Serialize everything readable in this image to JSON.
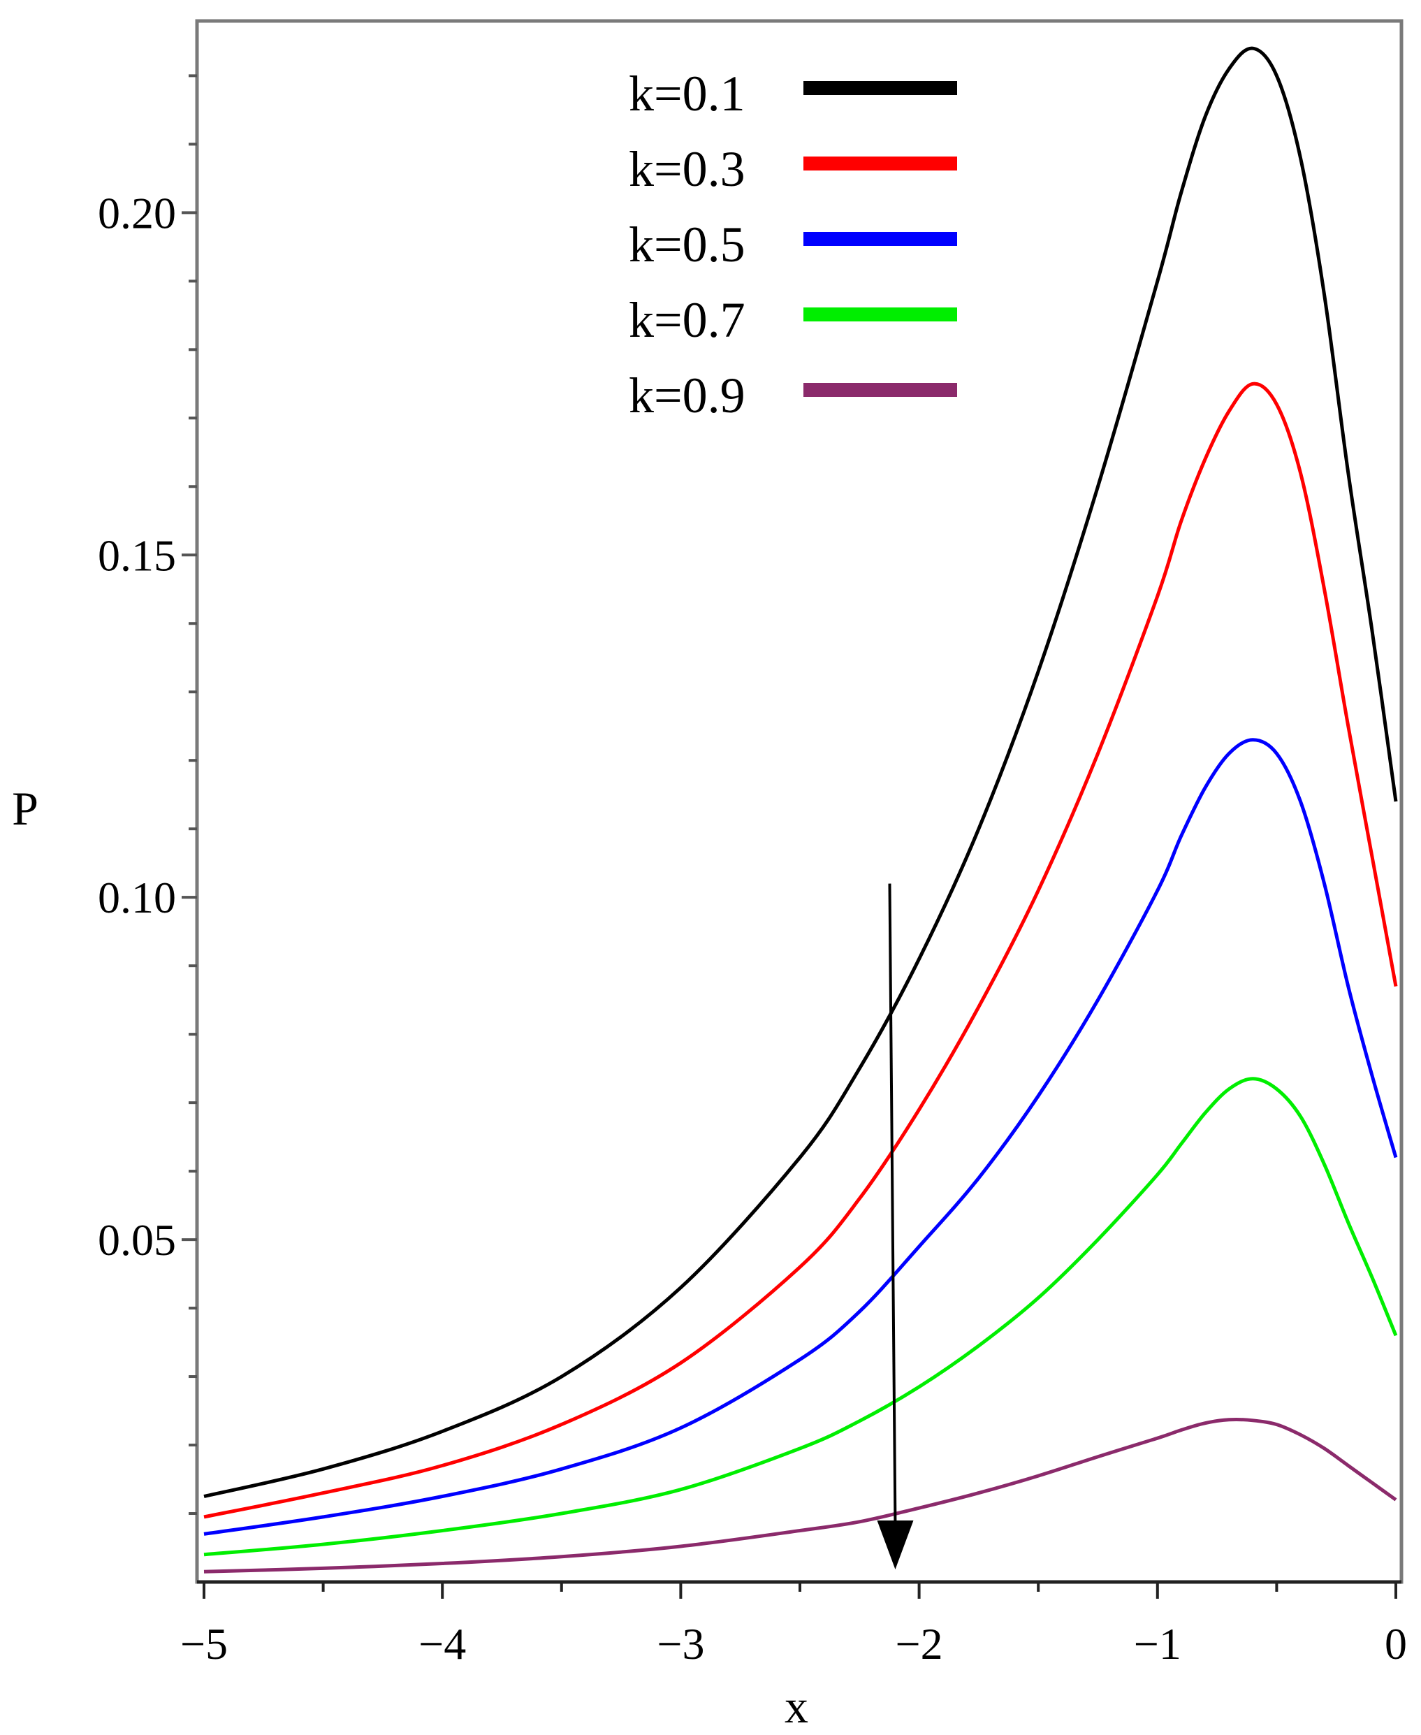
{
  "chart_data": {
    "type": "line",
    "title": "",
    "xlabel": "x",
    "ylabel": "P",
    "xlim": [
      -5,
      0
    ],
    "ylim": [
      0.0,
      0.228
    ],
    "x_ticks": [
      -5,
      -4,
      -3,
      -2,
      -1,
      0
    ],
    "x_tick_labels": [
      "−5",
      "−4",
      "−3",
      "−2",
      "−1",
      "0"
    ],
    "y_ticks": [
      0.05,
      0.1,
      0.15,
      0.2
    ],
    "y_tick_labels": [
      "0.05",
      "0.10",
      "0.15",
      "0.20"
    ],
    "grid": false,
    "legend_position": "top-center",
    "annotation": {
      "type": "arrow",
      "direction": "down",
      "x": -2.1,
      "y_start": 0.102,
      "y_end": 0.0
    },
    "x": [
      -5.0,
      -4.5,
      -4.0,
      -3.5,
      -3.0,
      -2.5,
      -2.25,
      -2.0,
      -1.75,
      -1.5,
      -1.25,
      -1.0,
      -0.9,
      -0.8,
      -0.7,
      -0.6,
      -0.5,
      -0.4,
      -0.3,
      -0.2,
      -0.1,
      0.0
    ],
    "series": [
      {
        "name": "k=0.1",
        "color": "#000000",
        "values": [
          0.0125,
          0.0165,
          0.022,
          0.03,
          0.043,
          0.062,
          0.075,
          0.091,
          0.11,
          0.133,
          0.16,
          0.19,
          0.203,
          0.214,
          0.221,
          0.224,
          0.22,
          0.208,
          0.188,
          0.162,
          0.139,
          0.114
        ]
      },
      {
        "name": "k=0.3",
        "color": "#ff0000",
        "values": [
          0.0095,
          0.013,
          0.017,
          0.023,
          0.032,
          0.046,
          0.056,
          0.069,
          0.084,
          0.101,
          0.121,
          0.144,
          0.155,
          0.164,
          0.171,
          0.175,
          0.172,
          0.162,
          0.145,
          0.125,
          0.106,
          0.087
        ]
      },
      {
        "name": "k=0.5",
        "color": "#0000ff",
        "values": [
          0.007,
          0.0095,
          0.0125,
          0.0165,
          0.0225,
          0.0325,
          0.0395,
          0.049,
          0.059,
          0.071,
          0.085,
          0.101,
          0.109,
          0.116,
          0.121,
          0.123,
          0.121,
          0.114,
          0.102,
          0.087,
          0.074,
          0.062
        ]
      },
      {
        "name": "k=0.7",
        "color": "#00ee00",
        "values": [
          0.004,
          0.0055,
          0.0075,
          0.01,
          0.0135,
          0.0195,
          0.0235,
          0.0285,
          0.0345,
          0.0415,
          0.05,
          0.0595,
          0.064,
          0.0685,
          0.072,
          0.0735,
          0.072,
          0.068,
          0.061,
          0.0525,
          0.0445,
          0.036
        ]
      },
      {
        "name": "k=0.9",
        "color": "#8b2a6b",
        "values": [
          0.0015,
          0.002,
          0.0027,
          0.0037,
          0.0052,
          0.0075,
          0.0088,
          0.0108,
          0.013,
          0.0155,
          0.0183,
          0.021,
          0.0222,
          0.0232,
          0.0237,
          0.0236,
          0.023,
          0.0215,
          0.0195,
          0.017,
          0.0145,
          0.012
        ]
      }
    ]
  }
}
